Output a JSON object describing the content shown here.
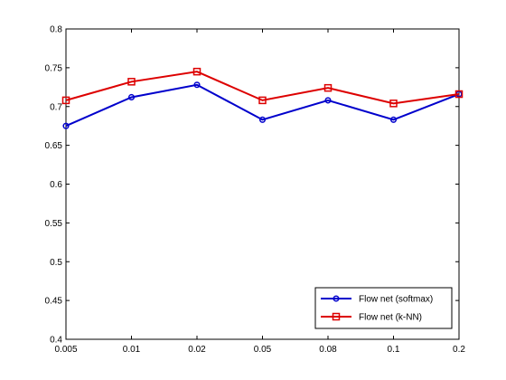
{
  "chart_data": {
    "type": "line",
    "title": "",
    "xlabel": "",
    "ylabel": "",
    "categories": [
      "0.005",
      "0.01",
      "0.02",
      "0.05",
      "0.08",
      "0.1",
      "0.2"
    ],
    "ylim": [
      0.4,
      0.8
    ],
    "yticks": [
      "0.4",
      "0.45",
      "0.5",
      "0.55",
      "0.6",
      "0.65",
      "0.7",
      "0.75",
      "0.8"
    ],
    "grid": false,
    "legend_position": "bottom-right",
    "series": [
      {
        "name": "Flow net (softmax)",
        "color": "#0000cc",
        "marker": "circle",
        "values": [
          0.675,
          0.712,
          0.728,
          0.683,
          0.708,
          0.683,
          0.716
        ]
      },
      {
        "name": "Flow net (k-NN)",
        "color": "#dd0000",
        "marker": "square",
        "values": [
          0.708,
          0.732,
          0.745,
          0.708,
          0.724,
          0.704,
          0.716
        ]
      }
    ]
  }
}
